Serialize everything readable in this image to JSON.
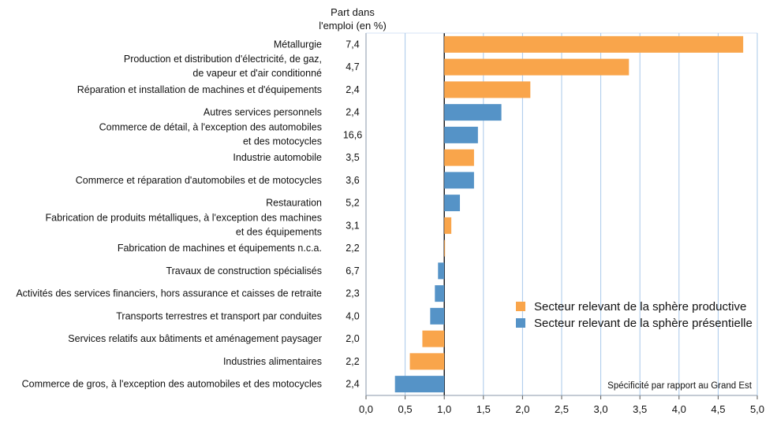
{
  "chart_data": {
    "type": "bar",
    "orientation": "horizontal",
    "value_column_header": [
      "Part dans",
      "l'emploi (en %)"
    ],
    "annotation": "Spécificité par rapport au Grand Est",
    "baseline": 1.0,
    "xlim": [
      0,
      5
    ],
    "xticks": [
      "0,0",
      "0,5",
      "1,0",
      "1,5",
      "2,0",
      "2,5",
      "3,0",
      "3,5",
      "4,0",
      "4,5",
      "5,0"
    ],
    "grid": true,
    "legend_position": "bottom-right",
    "legend": [
      {
        "key": "productive",
        "label": "Secteur relevant de la sphère productive",
        "color": "#f9a54b"
      },
      {
        "key": "presentielle",
        "label": "Secteur relevant de la sphère présentielle",
        "color": "#5593c7"
      }
    ],
    "categories": [
      {
        "label": [
          "Métallurgie"
        ],
        "share": "7,4",
        "value": 4.82,
        "sphere": "productive"
      },
      {
        "label": [
          "Production et distribution d'électricité, de gaz,",
          "de vapeur et d'air conditionné"
        ],
        "share": "4,7",
        "value": 3.36,
        "sphere": "productive"
      },
      {
        "label": [
          "Réparation et installation de machines et d'équipements"
        ],
        "share": "2,4",
        "value": 2.1,
        "sphere": "productive"
      },
      {
        "label": [
          "Autres services personnels"
        ],
        "share": "2,4",
        "value": 1.73,
        "sphere": "presentielle"
      },
      {
        "label": [
          "Commerce de détail, à l'exception des automobiles",
          "et des motocycles"
        ],
        "share": "16,6",
        "value": 1.43,
        "sphere": "presentielle"
      },
      {
        "label": [
          "Industrie automobile"
        ],
        "share": "3,5",
        "value": 1.38,
        "sphere": "productive"
      },
      {
        "label": [
          "Commerce et réparation d'automobiles et de motocycles"
        ],
        "share": "3,6",
        "value": 1.38,
        "sphere": "presentielle"
      },
      {
        "label": [
          "Restauration"
        ],
        "share": "5,2",
        "value": 1.2,
        "sphere": "presentielle"
      },
      {
        "label": [
          "Fabrication de produits métalliques, à l'exception des machines",
          "et des équipements"
        ],
        "share": "3,1",
        "value": 1.09,
        "sphere": "productive"
      },
      {
        "label": [
          "Fabrication de machines et équipements n.c.a."
        ],
        "share": "2,2",
        "value": 1.01,
        "sphere": "productive"
      },
      {
        "label": [
          "Travaux de construction spécialisés"
        ],
        "share": "6,7",
        "value": 0.92,
        "sphere": "presentielle"
      },
      {
        "label": [
          "Activités des services financiers, hors assurance et caisses de retraite"
        ],
        "share": "2,3",
        "value": 0.88,
        "sphere": "presentielle"
      },
      {
        "label": [
          "Transports terrestres et transport par conduites"
        ],
        "share": "4,0",
        "value": 0.82,
        "sphere": "presentielle"
      },
      {
        "label": [
          "Services relatifs aux bâtiments et aménagement paysager"
        ],
        "share": "2,0",
        "value": 0.72,
        "sphere": "productive"
      },
      {
        "label": [
          "Industries alimentaires"
        ],
        "share": "2,2",
        "value": 0.56,
        "sphere": "productive"
      },
      {
        "label": [
          "Commerce de gros, à l'exception des automobiles et des motocycles"
        ],
        "share": "2,4",
        "value": 0.37,
        "sphere": "presentielle"
      }
    ]
  }
}
